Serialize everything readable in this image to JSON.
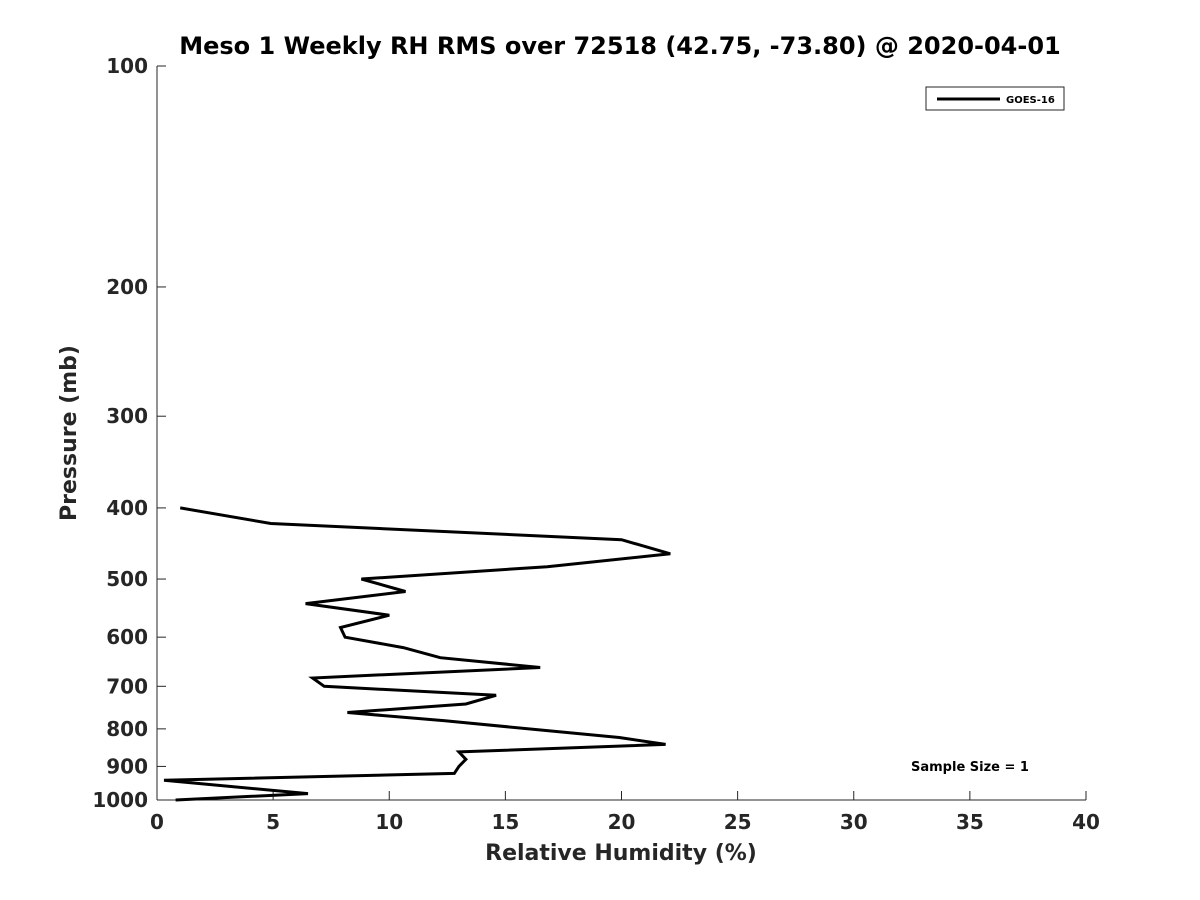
{
  "chart_data": {
    "type": "line",
    "title": "Meso 1 Weekly RH RMS over 72518 (42.75, -73.80) @ 2020-04-01",
    "xlabel": "Relative Humidity (%)",
    "ylabel": "Pressure (mb)",
    "xlim": [
      0,
      40
    ],
    "ylim": [
      100,
      1000
    ],
    "y_scale": "log",
    "y_reversed": true,
    "x_ticks": [
      0,
      5,
      10,
      15,
      20,
      25,
      30,
      35,
      40
    ],
    "y_ticks": [
      100,
      200,
      300,
      400,
      500,
      600,
      700,
      800,
      900,
      1000
    ],
    "grid": false,
    "legend_position": "top-right",
    "annotation": "Sample Size = 1",
    "series": [
      {
        "name": "GOES-16",
        "color": "#000000",
        "points": [
          {
            "x": 1.0,
            "y": 400
          },
          {
            "x": 4.9,
            "y": 420
          },
          {
            "x": 20.0,
            "y": 442
          },
          {
            "x": 22.1,
            "y": 462
          },
          {
            "x": 16.8,
            "y": 481
          },
          {
            "x": 8.8,
            "y": 500
          },
          {
            "x": 10.7,
            "y": 520
          },
          {
            "x": 6.4,
            "y": 540
          },
          {
            "x": 10.0,
            "y": 560
          },
          {
            "x": 7.9,
            "y": 582
          },
          {
            "x": 8.1,
            "y": 600
          },
          {
            "x": 10.6,
            "y": 620
          },
          {
            "x": 12.2,
            "y": 640
          },
          {
            "x": 16.5,
            "y": 660
          },
          {
            "x": 6.7,
            "y": 682
          },
          {
            "x": 7.2,
            "y": 700
          },
          {
            "x": 14.6,
            "y": 720
          },
          {
            "x": 13.3,
            "y": 740
          },
          {
            "x": 8.2,
            "y": 760
          },
          {
            "x": 12.4,
            "y": 780
          },
          {
            "x": 19.9,
            "y": 822
          },
          {
            "x": 21.9,
            "y": 840
          },
          {
            "x": 13.0,
            "y": 860
          },
          {
            "x": 13.3,
            "y": 880
          },
          {
            "x": 13.0,
            "y": 900
          },
          {
            "x": 12.8,
            "y": 920
          },
          {
            "x": 0.3,
            "y": 940
          },
          {
            "x": 6.5,
            "y": 980
          },
          {
            "x": 0.8,
            "y": 1000
          }
        ]
      }
    ]
  }
}
